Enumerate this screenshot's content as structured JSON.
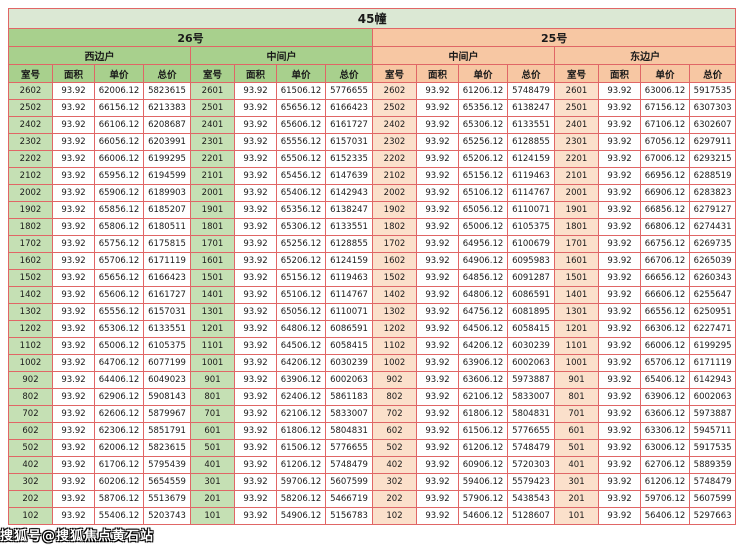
{
  "page_title": "45幢",
  "watermark": "搜狐号@搜狐焦点黄石站",
  "buildings": [
    {
      "name": "26号",
      "units": [
        "西边户",
        "中间户"
      ]
    },
    {
      "name": "25号",
      "units": [
        "中间户",
        "东边户"
      ]
    }
  ],
  "column_headers": [
    "室号",
    "面积",
    "单价",
    "总价"
  ],
  "colors": {
    "border": "#e06666",
    "title_bg": "#dbe8d4",
    "green_header": "#a8d08d",
    "green_cell": "#c5e0b4",
    "peach_header": "#f7c7a3",
    "peach_cell": "#fbe0cb"
  },
  "chart_data": {
    "type": "table",
    "group_columns": [
      "室号",
      "面积",
      "单价",
      "总价"
    ],
    "groups": [
      "26号西边户",
      "26号中间户",
      "25号中间户",
      "25号东边户"
    ],
    "rows": [
      [
        "2602",
        "93.92",
        "62006.12",
        "5823615",
        "2601",
        "93.92",
        "61506.12",
        "5776655",
        "2602",
        "93.92",
        "61206.12",
        "5748479",
        "2601",
        "93.92",
        "63006.12",
        "5917535"
      ],
      [
        "2502",
        "93.92",
        "66156.12",
        "6213383",
        "2501",
        "93.92",
        "65656.12",
        "6166423",
        "2502",
        "93.92",
        "65356.12",
        "6138247",
        "2501",
        "93.92",
        "67156.12",
        "6307303"
      ],
      [
        "2402",
        "93.92",
        "66106.12",
        "6208687",
        "2401",
        "93.92",
        "65606.12",
        "6161727",
        "2402",
        "93.92",
        "65306.12",
        "6133551",
        "2401",
        "93.92",
        "67106.12",
        "6302607"
      ],
      [
        "2302",
        "93.92",
        "66056.12",
        "6203991",
        "2301",
        "93.92",
        "65556.12",
        "6157031",
        "2302",
        "93.92",
        "65256.12",
        "6128855",
        "2301",
        "93.92",
        "67056.12",
        "6297911"
      ],
      [
        "2202",
        "93.92",
        "66006.12",
        "6199295",
        "2201",
        "93.92",
        "65506.12",
        "6152335",
        "2202",
        "93.92",
        "65206.12",
        "6124159",
        "2201",
        "93.92",
        "67006.12",
        "6293215"
      ],
      [
        "2102",
        "93.92",
        "65956.12",
        "6194599",
        "2101",
        "93.92",
        "65456.12",
        "6147639",
        "2102",
        "93.92",
        "65156.12",
        "6119463",
        "2101",
        "93.92",
        "66956.12",
        "6288519"
      ],
      [
        "2002",
        "93.92",
        "65906.12",
        "6189903",
        "2001",
        "93.92",
        "65406.12",
        "6142943",
        "2002",
        "93.92",
        "65106.12",
        "6114767",
        "2001",
        "93.92",
        "66906.12",
        "6283823"
      ],
      [
        "1902",
        "93.92",
        "65856.12",
        "6185207",
        "1901",
        "93.92",
        "65356.12",
        "6138247",
        "1902",
        "93.92",
        "65056.12",
        "6110071",
        "1901",
        "93.92",
        "66856.12",
        "6279127"
      ],
      [
        "1802",
        "93.92",
        "65806.12",
        "6180511",
        "1801",
        "93.92",
        "65306.12",
        "6133551",
        "1802",
        "93.92",
        "65006.12",
        "6105375",
        "1801",
        "93.92",
        "66806.12",
        "6274431"
      ],
      [
        "1702",
        "93.92",
        "65756.12",
        "6175815",
        "1701",
        "93.92",
        "65256.12",
        "6128855",
        "1702",
        "93.92",
        "64956.12",
        "6100679",
        "1701",
        "93.92",
        "66756.12",
        "6269735"
      ],
      [
        "1602",
        "93.92",
        "65706.12",
        "6171119",
        "1601",
        "93.92",
        "65206.12",
        "6124159",
        "1602",
        "93.92",
        "64906.12",
        "6095983",
        "1601",
        "93.92",
        "66706.12",
        "6265039"
      ],
      [
        "1502",
        "93.92",
        "65656.12",
        "6166423",
        "1501",
        "93.92",
        "65156.12",
        "6119463",
        "1502",
        "93.92",
        "64856.12",
        "6091287",
        "1501",
        "93.92",
        "66656.12",
        "6260343"
      ],
      [
        "1402",
        "93.92",
        "65606.12",
        "6161727",
        "1401",
        "93.92",
        "65106.12",
        "6114767",
        "1402",
        "93.92",
        "64806.12",
        "6086591",
        "1401",
        "93.92",
        "66606.12",
        "6255647"
      ],
      [
        "1302",
        "93.92",
        "65556.12",
        "6157031",
        "1301",
        "93.92",
        "65056.12",
        "6110071",
        "1302",
        "93.92",
        "64756.12",
        "6081895",
        "1301",
        "93.92",
        "66556.12",
        "6250951"
      ],
      [
        "1202",
        "93.92",
        "65306.12",
        "6133551",
        "1201",
        "93.92",
        "64806.12",
        "6086591",
        "1202",
        "93.92",
        "64506.12",
        "6058415",
        "1201",
        "93.92",
        "66306.12",
        "6227471"
      ],
      [
        "1102",
        "93.92",
        "65006.12",
        "6105375",
        "1101",
        "93.92",
        "64506.12",
        "6058415",
        "1102",
        "93.92",
        "64206.12",
        "6030239",
        "1101",
        "93.92",
        "66006.12",
        "6199295"
      ],
      [
        "1002",
        "93.92",
        "64706.12",
        "6077199",
        "1001",
        "93.92",
        "64206.12",
        "6030239",
        "1002",
        "93.92",
        "63906.12",
        "6002063",
        "1001",
        "93.92",
        "65706.12",
        "6171119"
      ],
      [
        "902",
        "93.92",
        "64406.12",
        "6049023",
        "901",
        "93.92",
        "63906.12",
        "6002063",
        "902",
        "93.92",
        "63606.12",
        "5973887",
        "901",
        "93.92",
        "65406.12",
        "6142943"
      ],
      [
        "802",
        "93.92",
        "62906.12",
        "5908143",
        "801",
        "93.92",
        "62406.12",
        "5861183",
        "802",
        "93.92",
        "62106.12",
        "5833007",
        "801",
        "93.92",
        "63906.12",
        "6002063"
      ],
      [
        "702",
        "93.92",
        "62606.12",
        "5879967",
        "701",
        "93.92",
        "62106.12",
        "5833007",
        "702",
        "93.92",
        "61806.12",
        "5804831",
        "701",
        "93.92",
        "63606.12",
        "5973887"
      ],
      [
        "602",
        "93.92",
        "62306.12",
        "5851791",
        "601",
        "93.92",
        "61806.12",
        "5804831",
        "602",
        "93.92",
        "61506.12",
        "5776655",
        "601",
        "93.92",
        "63306.12",
        "5945711"
      ],
      [
        "502",
        "93.92",
        "62006.12",
        "5823615",
        "501",
        "93.92",
        "61506.12",
        "5776655",
        "502",
        "93.92",
        "61206.12",
        "5748479",
        "501",
        "93.92",
        "63006.12",
        "5917535"
      ],
      [
        "402",
        "93.92",
        "61706.12",
        "5795439",
        "401",
        "93.92",
        "61206.12",
        "5748479",
        "402",
        "93.92",
        "60906.12",
        "5720303",
        "401",
        "93.92",
        "62706.12",
        "5889359"
      ],
      [
        "302",
        "93.92",
        "60206.12",
        "5654559",
        "301",
        "93.92",
        "59706.12",
        "5607599",
        "302",
        "93.92",
        "59406.12",
        "5579423",
        "301",
        "93.92",
        "61206.12",
        "5748479"
      ],
      [
        "202",
        "93.92",
        "58706.12",
        "5513679",
        "201",
        "93.92",
        "58206.12",
        "5466719",
        "202",
        "93.92",
        "57906.12",
        "5438543",
        "201",
        "93.92",
        "59706.12",
        "5607599"
      ],
      [
        "102",
        "93.92",
        "55406.12",
        "5203743",
        "101",
        "93.92",
        "54906.12",
        "5156783",
        "102",
        "93.92",
        "54606.12",
        "5128607",
        "101",
        "93.92",
        "56406.12",
        "5297663"
      ]
    ]
  }
}
